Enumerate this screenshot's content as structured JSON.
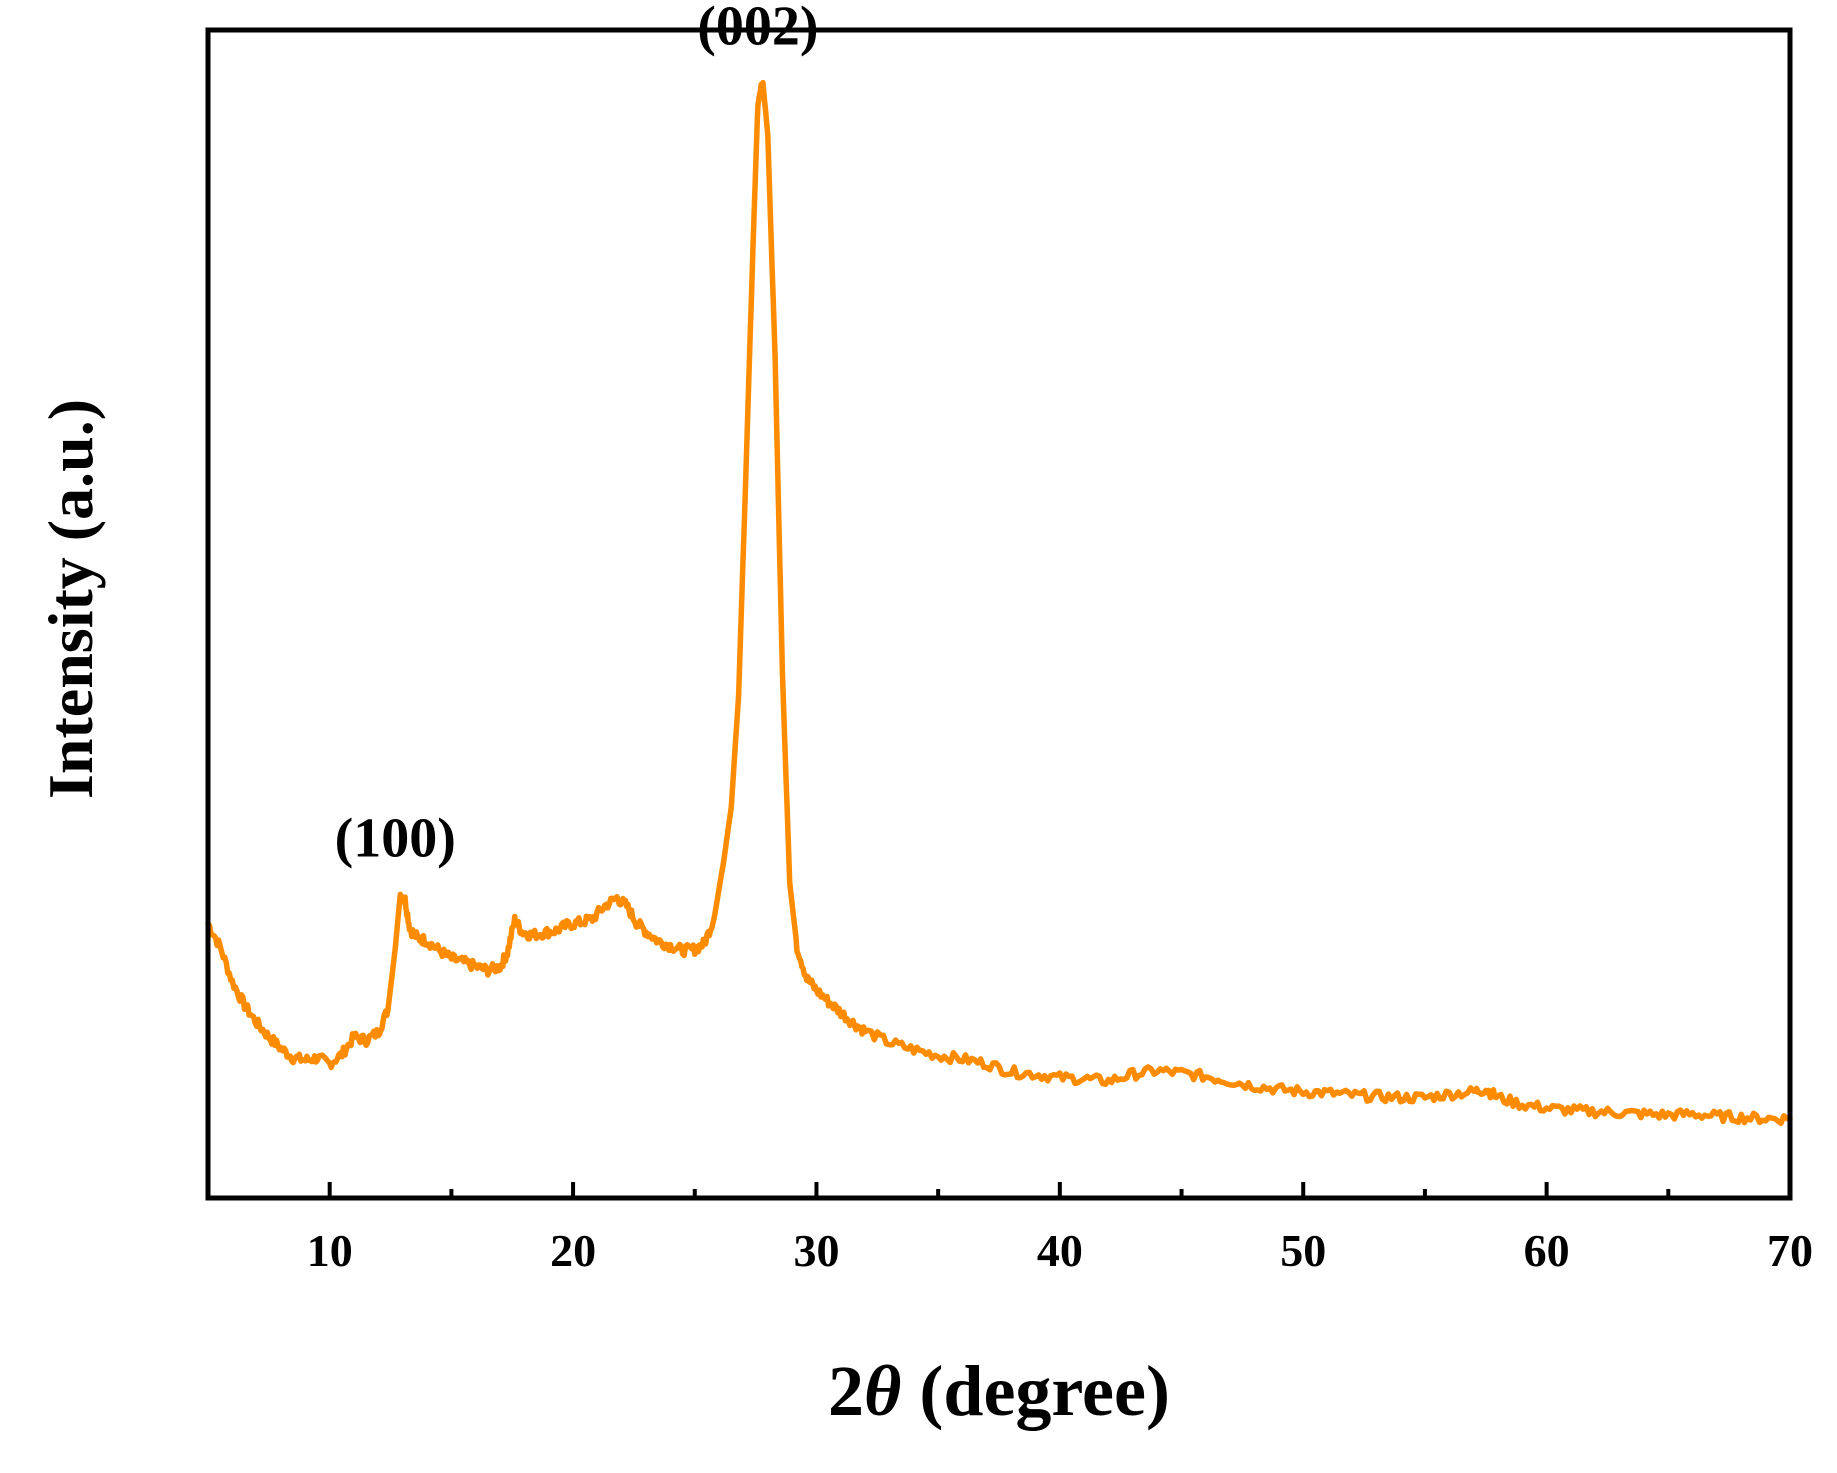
{
  "chart_data": {
    "type": "line",
    "xlabel_prefix": "2",
    "xlabel_symbol": "θ",
    "xlabel_suffix": " (degree)",
    "ylabel": "Intensity (a.u.)",
    "xlim": [
      5,
      70
    ],
    "ylim": [
      0,
      100
    ],
    "x_ticks": [
      10,
      20,
      30,
      40,
      50,
      60,
      70
    ],
    "y_ticks_shown": false,
    "grid": false,
    "legend": "none",
    "series": [
      {
        "color": "#FF8C00",
        "points": [
          [
            5.0,
            23.5
          ],
          [
            5.5,
            21.5
          ],
          [
            6.0,
            18.5
          ],
          [
            6.5,
            16.5
          ],
          [
            7.0,
            15.0
          ],
          [
            7.5,
            13.8
          ],
          [
            8.0,
            12.8
          ],
          [
            8.5,
            12.0
          ],
          [
            9.0,
            11.8
          ],
          [
            9.5,
            12.0
          ],
          [
            10.0,
            11.5
          ],
          [
            10.5,
            12.3
          ],
          [
            11.0,
            13.8
          ],
          [
            11.5,
            13.5
          ],
          [
            12.0,
            14.2
          ],
          [
            12.4,
            16.2
          ],
          [
            12.7,
            21.5
          ],
          [
            12.9,
            26.0
          ],
          [
            13.1,
            25.5
          ],
          [
            13.3,
            23.0
          ],
          [
            13.6,
            22.3
          ],
          [
            14.0,
            22.0
          ],
          [
            14.5,
            21.2
          ],
          [
            15.0,
            20.5
          ],
          [
            15.5,
            20.2
          ],
          [
            16.0,
            19.8
          ],
          [
            16.5,
            19.5
          ],
          [
            17.0,
            19.8
          ],
          [
            17.3,
            21.0
          ],
          [
            17.6,
            23.8
          ],
          [
            17.9,
            22.8
          ],
          [
            18.3,
            22.5
          ],
          [
            18.8,
            22.7
          ],
          [
            19.3,
            22.9
          ],
          [
            19.8,
            23.4
          ],
          [
            20.3,
            23.6
          ],
          [
            20.8,
            23.9
          ],
          [
            21.3,
            25.0
          ],
          [
            21.8,
            25.7
          ],
          [
            22.2,
            25.0
          ],
          [
            22.6,
            23.6
          ],
          [
            23.0,
            22.8
          ],
          [
            23.5,
            22.0
          ],
          [
            24.0,
            21.6
          ],
          [
            24.5,
            21.2
          ],
          [
            25.0,
            21.3
          ],
          [
            25.4,
            21.8
          ],
          [
            25.8,
            24.0
          ],
          [
            26.2,
            29.0
          ],
          [
            26.5,
            33.5
          ],
          [
            26.8,
            43.0
          ],
          [
            27.1,
            62.0
          ],
          [
            27.4,
            82.0
          ],
          [
            27.6,
            94.0
          ],
          [
            27.8,
            95.5
          ],
          [
            28.0,
            91.0
          ],
          [
            28.3,
            72.0
          ],
          [
            28.6,
            45.0
          ],
          [
            28.9,
            27.0
          ],
          [
            29.2,
            21.5
          ],
          [
            29.6,
            18.8
          ],
          [
            30.0,
            17.8
          ],
          [
            30.5,
            16.8
          ],
          [
            31.0,
            15.9
          ],
          [
            31.5,
            15.0
          ],
          [
            32.0,
            14.3
          ],
          [
            33.0,
            13.3
          ],
          [
            34.0,
            12.7
          ],
          [
            35.0,
            12.2
          ],
          [
            36.0,
            11.9
          ],
          [
            37.0,
            11.5
          ],
          [
            38.0,
            10.8
          ],
          [
            39.0,
            10.6
          ],
          [
            40.0,
            10.3
          ],
          [
            41.0,
            10.2
          ],
          [
            42.0,
            10.0
          ],
          [
            43.0,
            10.6
          ],
          [
            44.0,
            10.9
          ],
          [
            45.0,
            10.7
          ],
          [
            46.0,
            10.4
          ],
          [
            47.0,
            10.0
          ],
          [
            48.0,
            9.6
          ],
          [
            49.0,
            9.3
          ],
          [
            50.0,
            9.1
          ],
          [
            51.0,
            9.0
          ],
          [
            52.0,
            8.8
          ],
          [
            53.0,
            8.7
          ],
          [
            54.0,
            8.6
          ],
          [
            55.0,
            8.6
          ],
          [
            56.0,
            8.9
          ],
          [
            57.0,
            9.1
          ],
          [
            57.5,
            9.3
          ],
          [
            58.0,
            8.6
          ],
          [
            59.0,
            8.0
          ],
          [
            60.0,
            7.7
          ],
          [
            61.0,
            7.5
          ],
          [
            62.0,
            7.4
          ],
          [
            63.0,
            7.3
          ],
          [
            64.0,
            7.2
          ],
          [
            65.0,
            7.1
          ],
          [
            66.0,
            7.2
          ],
          [
            67.0,
            7.0
          ],
          [
            68.0,
            6.9
          ],
          [
            69.0,
            6.8
          ],
          [
            70.0,
            6.8
          ]
        ]
      }
    ],
    "annotations": [
      {
        "text": "(100)",
        "x": 12.9,
        "y": 26.0
      },
      {
        "text": "(002)",
        "x": 27.8,
        "y": 95.5
      }
    ]
  }
}
